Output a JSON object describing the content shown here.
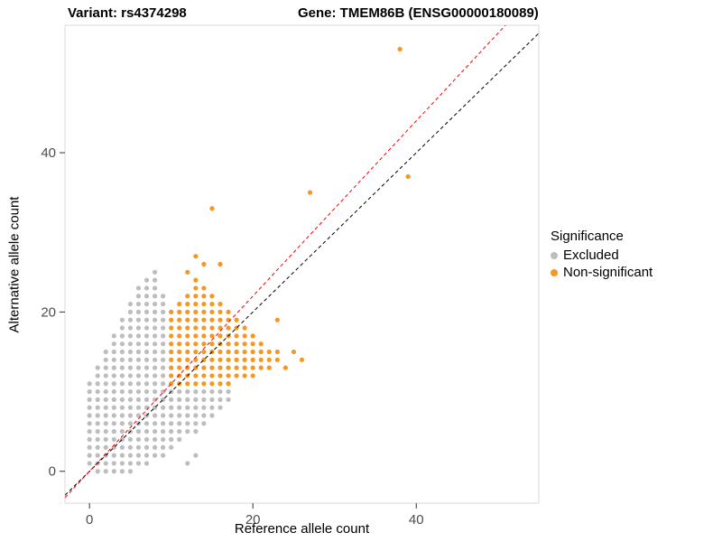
{
  "legend": {
    "title": "Significance",
    "items": [
      {
        "label": "Excluded",
        "color": "#BDBDBD"
      },
      {
        "label": "Non-significant",
        "color": "#F59720"
      }
    ]
  },
  "chart_data": {
    "type": "scatter",
    "title_left": "Variant: rs4374298",
    "title_right": "Gene: TMEM86B (ENSG00000180089)",
    "xlabel": "Reference allele count",
    "ylabel": "Alternative allele count",
    "xlim": [
      -3,
      55
    ],
    "ylim": [
      -4,
      56
    ],
    "xticks": [
      0,
      20,
      40
    ],
    "yticks": [
      0,
      20,
      40
    ],
    "grid": false,
    "legend_position": "right",
    "series": [
      {
        "name": "Excluded",
        "color": "#BDBDBD",
        "marker": "dot",
        "columns": [
          {
            "x": 0,
            "y_from": 1,
            "y_to": 11
          },
          {
            "x": 1,
            "y_from": 0,
            "y_to": 13
          },
          {
            "x": 2,
            "y_from": 0,
            "y_to": 15
          },
          {
            "x": 3,
            "y_from": 0,
            "y_to": 17
          },
          {
            "x": 4,
            "y_from": 0,
            "y_to": 19
          },
          {
            "x": 5,
            "y_from": 0,
            "y_to": 21
          },
          {
            "x": 6,
            "y_from": 1,
            "y_to": 23
          },
          {
            "x": 7,
            "y_from": 1,
            "y_to": 24
          },
          {
            "x": 8,
            "y_from": 2,
            "y_to": 25
          },
          {
            "x": 9,
            "y_from": 2,
            "y_to": 22
          },
          {
            "x": 10,
            "y_from": 3,
            "y_to": 10
          },
          {
            "x": 11,
            "y_from": 4,
            "y_to": 10
          },
          {
            "x": 12,
            "y_from": 5,
            "y_to": 10
          },
          {
            "x": 13,
            "y_from": 5,
            "y_to": 10
          },
          {
            "x": 14,
            "y_from": 6,
            "y_to": 10
          },
          {
            "x": 15,
            "y_from": 7,
            "y_to": 10
          },
          {
            "x": 16,
            "y_from": 8,
            "y_to": 10
          },
          {
            "x": 17,
            "y_from": 9,
            "y_to": 10
          }
        ],
        "extra_points": [
          [
            12,
            1
          ],
          [
            13,
            2
          ],
          [
            16,
            12
          ],
          [
            17,
            11
          ]
        ]
      },
      {
        "name": "Non-significant",
        "color": "#F59720",
        "marker": "dot",
        "columns": [
          {
            "x": 10,
            "y_from": 11,
            "y_to": 20
          },
          {
            "x": 11,
            "y_from": 11,
            "y_to": 21
          },
          {
            "x": 12,
            "y_from": 11,
            "y_to": 22
          },
          {
            "x": 13,
            "y_from": 11,
            "y_to": 24
          },
          {
            "x": 14,
            "y_from": 11,
            "y_to": 23
          },
          {
            "x": 15,
            "y_from": 11,
            "y_to": 22
          },
          {
            "x": 16,
            "y_from": 11,
            "y_to": 21
          },
          {
            "x": 17,
            "y_from": 11,
            "y_to": 20
          },
          {
            "x": 18,
            "y_from": 12,
            "y_to": 19
          },
          {
            "x": 19,
            "y_from": 12,
            "y_to": 18
          },
          {
            "x": 20,
            "y_from": 12,
            "y_to": 17
          },
          {
            "x": 21,
            "y_from": 13,
            "y_to": 16
          },
          {
            "x": 22,
            "y_from": 13,
            "y_to": 15
          },
          {
            "x": 23,
            "y_from": 14,
            "y_to": 15
          }
        ],
        "extra_points": [
          [
            24,
            13
          ],
          [
            25,
            15
          ],
          [
            23,
            19
          ],
          [
            26,
            14
          ],
          [
            12,
            25
          ],
          [
            13,
            27
          ],
          [
            14,
            26
          ],
          [
            16,
            26
          ],
          [
            15,
            33
          ],
          [
            27,
            35
          ],
          [
            38,
            53
          ],
          [
            39,
            37
          ]
        ]
      }
    ],
    "lines": [
      {
        "name": "identity",
        "slope": 1,
        "intercept": 0,
        "color": "#000000",
        "style": "dashed"
      },
      {
        "name": "expected-ratio",
        "slope": 1.1,
        "intercept": 0,
        "color": "#FF0000",
        "style": "dashed"
      }
    ]
  }
}
